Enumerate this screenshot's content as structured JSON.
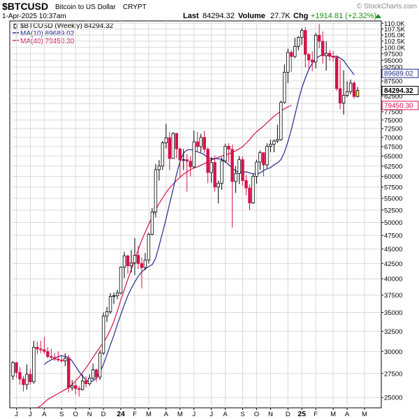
{
  "header": {
    "symbol": "$BTCUSD",
    "name": "Bitcoin to US Dollar",
    "exchange": "CRYPT",
    "date_time": "1-Apr-2025 10:37am",
    "watermark": "© StockCharts.com",
    "last_label": "Last",
    "last_value": "84294.32",
    "volume_label": "Volume",
    "volume_value": "27.7K",
    "chg_label": "Chg",
    "chg_value": "+1914.81 (+2.32%)",
    "chg_color": "#1a8c1a"
  },
  "legend": [
    {
      "text": "$BTCUSD (Weekly) 84294.32",
      "color": "#000000",
      "icon": "candle-icon"
    },
    {
      "text": "MA(10) 89689.02",
      "color": "#1f2a8c",
      "icon": "line-icon"
    },
    {
      "text": "MA(40) 79450.30",
      "color": "#d4124a",
      "icon": "line-icon"
    }
  ],
  "price_tags": [
    {
      "text": "89689.02",
      "value": 89689.02,
      "color": "#1f2a8c",
      "bold": false
    },
    {
      "text": "84294.32",
      "value": 84294.32,
      "color": "#000000",
      "bold": true
    },
    {
      "text": "79450.30",
      "value": 79450.3,
      "color": "#d4124a",
      "bold": false
    }
  ],
  "chart_data": {
    "type": "candlestick",
    "period": "Weekly",
    "y_scale": "log",
    "ylim": [
      24000,
      111000
    ],
    "grid": true,
    "y_ticks": [
      "110.0K",
      "107.5K",
      "105.0K",
      "102.5K",
      "100.0K",
      "97500",
      "95000",
      "92500",
      "90000",
      "87500",
      "85000",
      "82500",
      "80000",
      "77500",
      "75000",
      "72500",
      "70000",
      "67500",
      "65000",
      "62500",
      "60000",
      "57500",
      "55000",
      "52500",
      "50000",
      "47500",
      "45000",
      "42500",
      "40000",
      "37500",
      "35000",
      "32500",
      "30000",
      "27500",
      "25000"
    ],
    "y_tick_values": [
      110000,
      107500,
      105000,
      102500,
      100000,
      97500,
      95000,
      92500,
      90000,
      87500,
      85000,
      82500,
      80000,
      77500,
      75000,
      72500,
      70000,
      67500,
      65000,
      62500,
      60000,
      57500,
      55000,
      52500,
      50000,
      47500,
      45000,
      42500,
      40000,
      37500,
      35000,
      32500,
      30000,
      27500,
      25000
    ],
    "x_ticks": [
      {
        "label": "J",
        "week": 1
      },
      {
        "label": "J",
        "week": 5
      },
      {
        "label": "A",
        "week": 9
      },
      {
        "label": "S",
        "week": 14
      },
      {
        "label": "O",
        "week": 18
      },
      {
        "label": "N",
        "week": 22
      },
      {
        "label": "D",
        "week": 26
      },
      {
        "label": "24",
        "week": 31,
        "bold": true
      },
      {
        "label": "F",
        "week": 35
      },
      {
        "label": "M",
        "week": 39
      },
      {
        "label": "A",
        "week": 44
      },
      {
        "label": "M",
        "week": 48
      },
      {
        "label": "J",
        "week": 52
      },
      {
        "label": "J",
        "week": 57
      },
      {
        "label": "A",
        "week": 61
      },
      {
        "label": "S",
        "week": 66
      },
      {
        "label": "O",
        "week": 70
      },
      {
        "label": "N",
        "week": 74
      },
      {
        "label": "D",
        "week": 79
      },
      {
        "label": "25",
        "week": 83,
        "bold": true
      },
      {
        "label": "F",
        "week": 87
      },
      {
        "label": "M",
        "week": 92
      },
      {
        "label": "A",
        "week": 96
      },
      {
        "label": "M",
        "week": 101
      }
    ],
    "series": [
      {
        "name": "$BTCUSD (Weekly)",
        "kind": "ohlc",
        "up_color": "#000000",
        "down_color": "#d4124a",
        "ohlc": [
          [
            27200,
            28900,
            26800,
            28700
          ],
          [
            28700,
            28800,
            27000,
            27600
          ],
          [
            27600,
            28200,
            26300,
            26900
          ],
          [
            26900,
            27200,
            25600,
            26300
          ],
          [
            26300,
            28500,
            25800,
            27400
          ],
          [
            27400,
            28000,
            26300,
            26600
          ],
          [
            26600,
            31300,
            26400,
            30500
          ],
          [
            30500,
            31200,
            29700,
            30300
          ],
          [
            30300,
            31300,
            29800,
            30200
          ],
          [
            30200,
            31800,
            29700,
            30000
          ],
          [
            30000,
            30500,
            29200,
            29400
          ],
          [
            29400,
            30300,
            29000,
            29300
          ],
          [
            29300,
            29800,
            28900,
            29100
          ],
          [
            29100,
            30000,
            28800,
            29000
          ],
          [
            29000,
            29400,
            28700,
            28900
          ],
          [
            28900,
            29800,
            28300,
            29200
          ],
          [
            29200,
            29600,
            25500,
            26000
          ],
          [
            26000,
            26800,
            25700,
            26200
          ],
          [
            26200,
            26600,
            25300,
            25900
          ],
          [
            25900,
            26200,
            25100,
            25800
          ],
          [
            25800,
            27400,
            25700,
            26700
          ],
          [
            26700,
            27200,
            26000,
            26400
          ],
          [
            26400,
            27400,
            26200,
            27000
          ],
          [
            27000,
            28600,
            26800,
            27900
          ],
          [
            27900,
            28000,
            26600,
            27100
          ],
          [
            27100,
            30200,
            26800,
            29800
          ],
          [
            29800,
            35000,
            29600,
            34500
          ],
          [
            34500,
            35800,
            33700,
            35100
          ],
          [
            35100,
            37800,
            34800,
            37300
          ],
          [
            37300,
            37900,
            36200,
            37400
          ],
          [
            37400,
            38300,
            36900,
            37800
          ],
          [
            37800,
            42000,
            37600,
            41900
          ],
          [
            41900,
            44500,
            40100,
            43800
          ],
          [
            43800,
            44000,
            40800,
            42100
          ],
          [
            42100,
            44800,
            41000,
            42600
          ],
          [
            42600,
            47000,
            40600,
            43900
          ],
          [
            43900,
            45500,
            41600,
            42500
          ],
          [
            42500,
            43500,
            38500,
            41800
          ],
          [
            41800,
            44300,
            41400,
            43100
          ],
          [
            43100,
            48000,
            42500,
            47700
          ],
          [
            47700,
            52900,
            47500,
            52100
          ],
          [
            52100,
            63000,
            51000,
            61600
          ],
          [
            61600,
            64000,
            59000,
            62500
          ],
          [
            62500,
            69000,
            61500,
            68500
          ],
          [
            68500,
            73800,
            67000,
            69900
          ],
          [
            69900,
            71500,
            61500,
            64400
          ],
          [
            64400,
            71500,
            64300,
            71100
          ],
          [
            71100,
            71300,
            64500,
            66900
          ],
          [
            66900,
            67200,
            59800,
            64000
          ],
          [
            64000,
            66900,
            61500,
            64100
          ],
          [
            64100,
            65500,
            56500,
            63700
          ],
          [
            63700,
            65000,
            60000,
            62300
          ],
          [
            62300,
            71900,
            62000,
            68800
          ],
          [
            68800,
            71500,
            66200,
            67500
          ],
          [
            67500,
            71000,
            66000,
            70000
          ],
          [
            70000,
            71900,
            65800,
            66800
          ],
          [
            66800,
            67300,
            58400,
            60900
          ],
          [
            60900,
            64800,
            58500,
            63400
          ],
          [
            63400,
            65200,
            56500,
            57500
          ],
          [
            57500,
            59000,
            53900,
            58400
          ],
          [
            58400,
            64700,
            56900,
            63800
          ],
          [
            63800,
            68300,
            63300,
            67600
          ],
          [
            67600,
            68400,
            63400,
            66800
          ],
          [
            66800,
            68000,
            49000,
            58800
          ],
          [
            58800,
            62500,
            56200,
            60700
          ],
          [
            60700,
            65000,
            58200,
            64100
          ],
          [
            64100,
            64900,
            57800,
            59000
          ],
          [
            59000,
            60300,
            55700,
            57300
          ],
          [
            57300,
            58000,
            52500,
            54000
          ],
          [
            54000,
            60600,
            53800,
            60000
          ],
          [
            60000,
            64100,
            58300,
            63500
          ],
          [
            63500,
            66500,
            61500,
            65900
          ],
          [
            65900,
            66000,
            60000,
            62800
          ],
          [
            62800,
            68400,
            62000,
            67600
          ],
          [
            67600,
            69400,
            66000,
            68100
          ],
          [
            68100,
            69500,
            66000,
            69000
          ],
          [
            69000,
            73600,
            68500,
            69400
          ],
          [
            69400,
            81000,
            69000,
            80400
          ],
          [
            80400,
            93400,
            80000,
            90600
          ],
          [
            90600,
            99500,
            86800,
            98000
          ],
          [
            98000,
            98800,
            90700,
            96400
          ],
          [
            96400,
            103900,
            95800,
            100400
          ],
          [
            100400,
            104500,
            98800,
            104000
          ],
          [
            104000,
            107800,
            101000,
            106900
          ],
          [
            106900,
            108300,
            92300,
            97200
          ],
          [
            97200,
            97800,
            92000,
            95100
          ],
          [
            95100,
            98400,
            91000,
            94300
          ],
          [
            94300,
            105800,
            92000,
            104900
          ],
          [
            104900,
            109600,
            99600,
            102400
          ],
          [
            102400,
            106500,
            93800,
            96700
          ],
          [
            96700,
            102500,
            91200,
            97700
          ],
          [
            97700,
            99000,
            94800,
            96500
          ],
          [
            96500,
            98500,
            94500,
            96100
          ],
          [
            96100,
            96600,
            84200,
            84900
          ],
          [
            84900,
            95000,
            78300,
            80200
          ],
          [
            80200,
            91300,
            76600,
            82700
          ],
          [
            82700,
            87500,
            82000,
            83900
          ],
          [
            83900,
            88000,
            83000,
            86800
          ],
          [
            86800,
            87500,
            81600,
            82300
          ],
          [
            82300,
            85500,
            82000,
            84294
          ]
        ]
      },
      {
        "name": "MA(10)",
        "kind": "line",
        "color": "#1f2a8c",
        "x_start": 9,
        "values": [
          28500,
          28800,
          29000,
          29200,
          29400,
          29500,
          29400,
          29300,
          28900,
          28300,
          27700,
          27200,
          26800,
          26600,
          26700,
          27000,
          27600,
          28500,
          29600,
          30800,
          32000,
          33400,
          34700,
          36100,
          37400,
          38500,
          39500,
          40400,
          41100,
          41600,
          42000,
          42300,
          43400,
          45600,
          48100,
          50700,
          53800,
          56900,
          60500,
          63600,
          65800,
          66600,
          66700,
          66500,
          66100,
          65800,
          65400,
          64500,
          64300,
          64400,
          64300,
          64200,
          63600,
          62800,
          62100,
          61300,
          60900,
          61000,
          61100,
          60800,
          60600,
          60600,
          60800,
          61400,
          61800,
          62100,
          62800,
          63300,
          64100,
          66000,
          68800,
          72300,
          76500,
          81000,
          85200,
          88500,
          91600,
          93900,
          95700,
          96500,
          97300,
          97100,
          96700,
          96400,
          96600,
          95800,
          94900,
          93000,
          91400,
          89689
        ]
      },
      {
        "name": "MA(40)",
        "kind": "line",
        "color": "#d4124a",
        "x_start": 7,
        "values": [
          24000,
          24200,
          24500,
          24800,
          25000,
          25200,
          25400,
          25600,
          25800,
          26000,
          26300,
          26700,
          27100,
          27600,
          28100,
          28700,
          29300,
          29900,
          30500,
          31100,
          31800,
          32700,
          33800,
          35200,
          36800,
          38300,
          39900,
          41500,
          43200,
          44900,
          46600,
          48100,
          49600,
          51100,
          52600,
          53900,
          55100,
          56300,
          57300,
          58200,
          59000,
          59800,
          60500,
          61100,
          61600,
          62000,
          62300,
          62700,
          63100,
          63600,
          64000,
          64300,
          64700,
          65000,
          65300,
          65600,
          66000,
          66400,
          66900,
          67500,
          68400,
          69400,
          70600,
          71600,
          72400,
          73200,
          74200,
          75200,
          76100,
          76900,
          77700,
          78400,
          79000,
          79450
        ]
      }
    ]
  }
}
